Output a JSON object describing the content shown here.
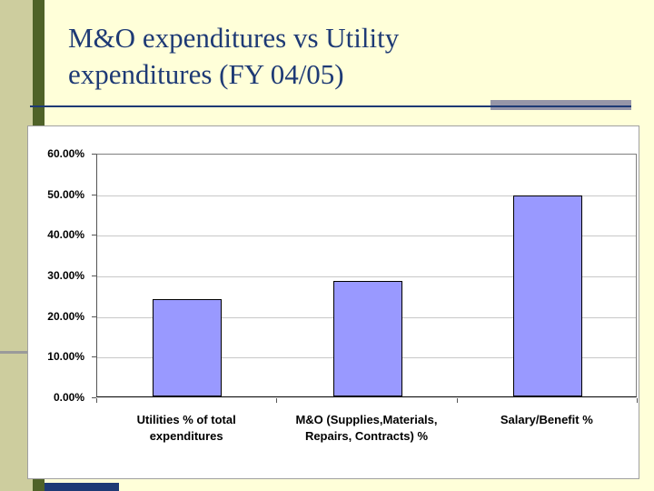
{
  "slide": {
    "title": "M&O expenditures vs Utility\nexpenditures (FY 04/05)"
  },
  "chart_data": {
    "type": "bar",
    "title": "",
    "xlabel": "",
    "ylabel": "",
    "categories": [
      "Utilities % of total\nexpenditures",
      "M&O (Supplies,Materials,\nRepairs, Contracts) %",
      "Salary/Benefit %"
    ],
    "values": [
      24.0,
      28.5,
      49.5
    ],
    "ylim": [
      0,
      60
    ],
    "yticks": [
      {
        "v": 60,
        "label": "60.00%"
      },
      {
        "v": 50,
        "label": "50.00%"
      },
      {
        "v": 40,
        "label": "40.00%"
      },
      {
        "v": 30,
        "label": "30.00%"
      },
      {
        "v": 20,
        "label": "20.00%"
      },
      {
        "v": 10,
        "label": "10.00%"
      },
      {
        "v": 0,
        "label": "0.00%"
      }
    ],
    "grid": true,
    "legend": false,
    "bar_color": "#9999FF",
    "bar_border_color": "#000000"
  },
  "colors": {
    "slide_background": "#FFFFD9",
    "title_text": "#1E3A75",
    "left_band": "#CDCD9E",
    "green_stripe": "#4F6228",
    "accent_bar": "#9696A8",
    "chart_background": "#FFFFFF"
  }
}
